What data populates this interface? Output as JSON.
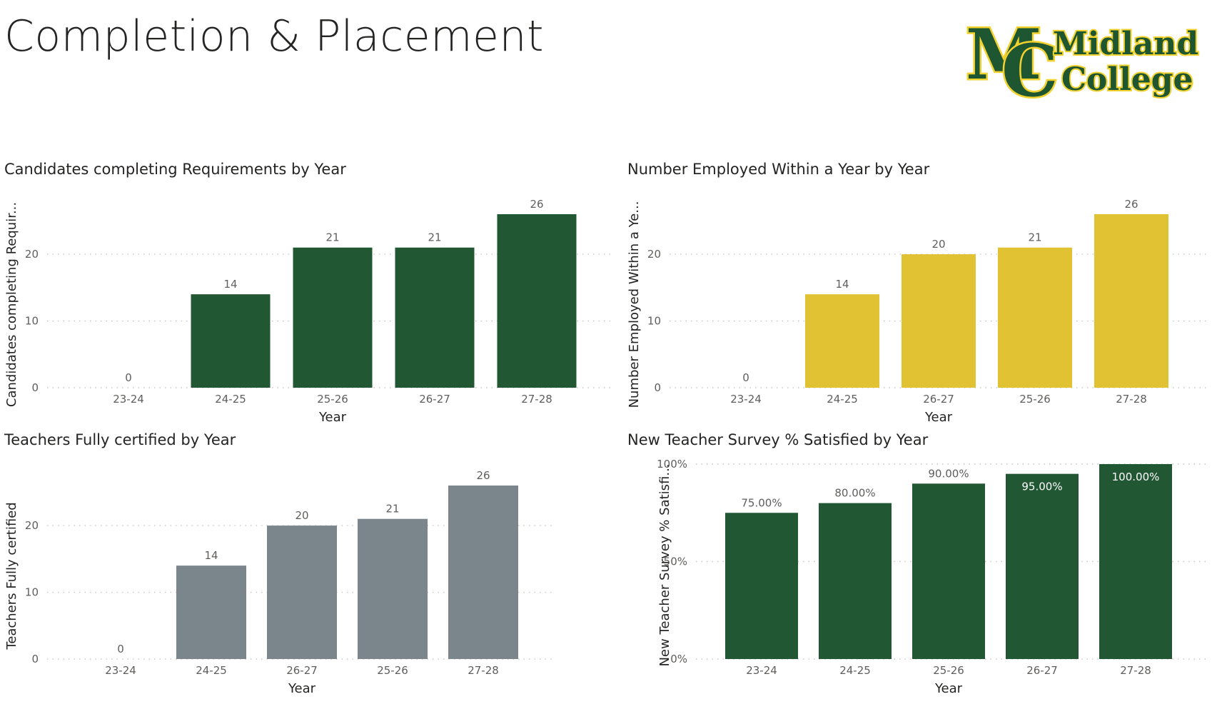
{
  "page": {
    "title": "Completion & Placement",
    "logo": {
      "word1": "Midland",
      "word2": "College",
      "monogram_m": "M",
      "monogram_c": "C",
      "green": "#1e5631",
      "gold": "#f2d22e"
    }
  },
  "chart_data": [
    {
      "id": "chart1",
      "type": "bar",
      "title": "Candidates completing Requirements by Year",
      "xlabel": "Year",
      "ylabel": "Candidates completing Requir...",
      "categories": [
        "23-24",
        "24-25",
        "25-26",
        "26-27",
        "27-28"
      ],
      "values": [
        0,
        14,
        21,
        21,
        26
      ],
      "value_labels": [
        "0",
        "14",
        "21",
        "21",
        "26"
      ],
      "yticks": [
        0,
        10,
        20
      ],
      "ytick_labels": [
        "0",
        "10",
        "20"
      ],
      "ylim": [
        0,
        26
      ],
      "grid": true,
      "color": "#215732"
    },
    {
      "id": "chart2",
      "type": "bar",
      "title": "Number Employed Within a Year by Year",
      "xlabel": "Year",
      "ylabel": "Number Employed Within a Ye...",
      "categories": [
        "23-24",
        "24-25",
        "26-27",
        "25-26",
        "27-28"
      ],
      "values": [
        0,
        14,
        20,
        21,
        26
      ],
      "value_labels": [
        "0",
        "14",
        "20",
        "21",
        "26"
      ],
      "yticks": [
        0,
        10,
        20
      ],
      "ytick_labels": [
        "0",
        "10",
        "20"
      ],
      "ylim": [
        0,
        26
      ],
      "grid": true,
      "color": "#e0c232"
    },
    {
      "id": "chart3",
      "type": "bar",
      "title": "Teachers Fully certified by Year",
      "xlabel": "Year",
      "ylabel": "Teachers Fully certified",
      "categories": [
        "23-24",
        "24-25",
        "26-27",
        "25-26",
        "27-28"
      ],
      "values": [
        0,
        14,
        20,
        21,
        26
      ],
      "value_labels": [
        "0",
        "14",
        "20",
        "21",
        "26"
      ],
      "yticks": [
        0,
        10,
        20
      ],
      "ytick_labels": [
        "0",
        "10",
        "20"
      ],
      "ylim": [
        0,
        26
      ],
      "grid": true,
      "color": "#7b868c"
    },
    {
      "id": "chart4",
      "type": "bar",
      "title": "New Teacher Survey % Satisfied by Year",
      "xlabel": "Year",
      "ylabel": "New Teacher Survey % Satisfi...",
      "categories": [
        "23-24",
        "24-25",
        "25-26",
        "26-27",
        "27-28"
      ],
      "values": [
        75,
        80,
        90,
        95,
        100
      ],
      "value_labels": [
        "75.00%",
        "80.00%",
        "90.00%",
        "95.00%",
        "100.00%"
      ],
      "labels_inside": [
        false,
        false,
        false,
        true,
        true
      ],
      "yticks": [
        0,
        50,
        100
      ],
      "ytick_labels": [
        "0%",
        "50%",
        "100%"
      ],
      "ylim": [
        0,
        100
      ],
      "grid": true,
      "color": "#215732"
    }
  ]
}
